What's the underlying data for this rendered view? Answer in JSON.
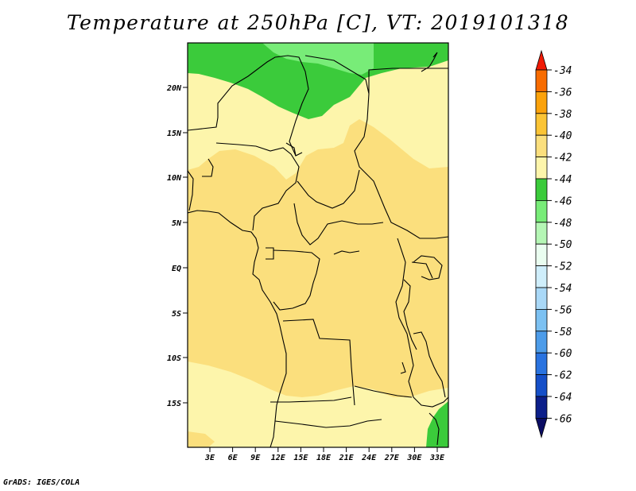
{
  "title": "Temperature at 250hPa [C], VT: 2019101318",
  "credit": "GrADS: IGES/COLA",
  "map": {
    "lat_ticks": [
      "20N",
      "15N",
      "10N",
      "5N",
      "EQ",
      "5S",
      "10S",
      "15S"
    ],
    "lon_ticks": [
      "3E",
      "6E",
      "9E",
      "12E",
      "15E",
      "18E",
      "21E",
      "24E",
      "27E",
      "30E",
      "33E"
    ],
    "colors": {
      "background_field": "#fbdf7d",
      "light_yellow": "#fdf5ab",
      "green_dark": "#3bcb3b",
      "green_light": "#78ec78",
      "coast": "#000000"
    }
  },
  "colorbar": {
    "labels": [
      "-34",
      "-36",
      "-38",
      "-40",
      "-42",
      "-44",
      "-46",
      "-48",
      "-50",
      "-52",
      "-54",
      "-56",
      "-58",
      "-60",
      "-62",
      "-64",
      "-66"
    ],
    "colors": [
      "#f01a05",
      "#f86c00",
      "#fba20b",
      "#fbc435",
      "#fbdf7d",
      "#fdf5ab",
      "#3bcb3b",
      "#78ec78",
      "#b5f6b5",
      "#eafdf0",
      "#cfeefb",
      "#a9d8f7",
      "#7cc1f2",
      "#4d9ce9",
      "#2a73e0",
      "#154fc8",
      "#0c1f8a",
      "#0b0d64"
    ]
  }
}
